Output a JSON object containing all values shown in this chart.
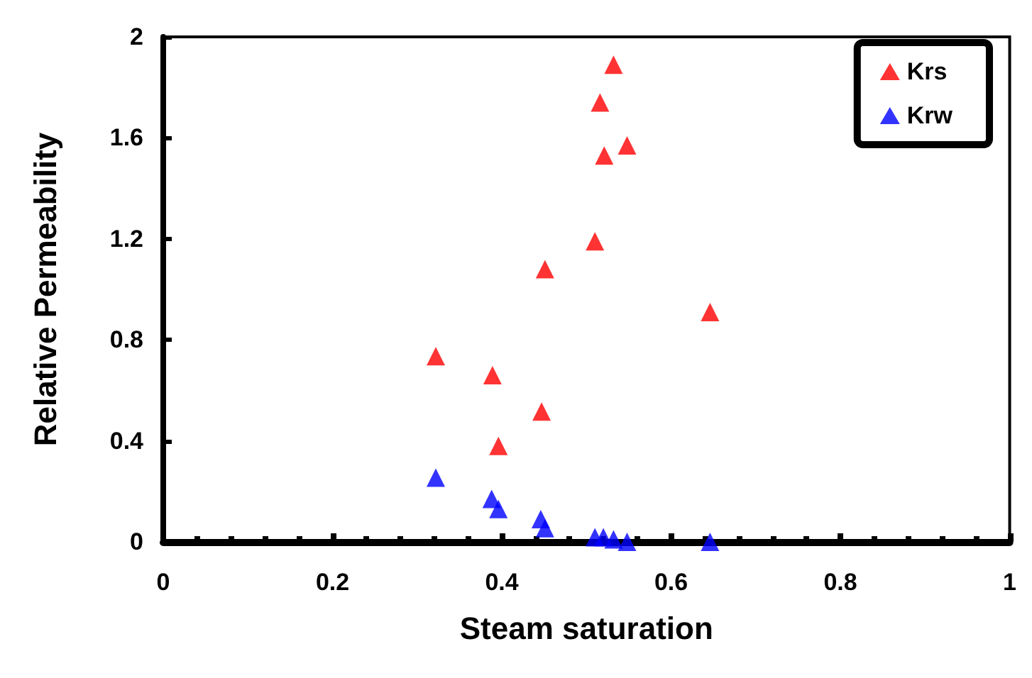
{
  "chart_data": {
    "type": "scatter",
    "xlabel": "Steam saturation",
    "ylabel": "Relative Permeability",
    "xlim": [
      0,
      1
    ],
    "xticks": [
      0,
      0.2,
      0.4,
      0.6,
      0.8,
      1
    ],
    "ylim": [
      0,
      2
    ],
    "yticks": [
      0,
      0.4,
      0.8,
      1.2,
      1.6,
      2
    ],
    "grid": false,
    "legend": "top right",
    "marker": "triangle",
    "series": [
      {
        "name": "Krs",
        "color": "#ff0000",
        "x": [
          0.532,
          0.516,
          0.548,
          0.521,
          0.51,
          0.451,
          0.646,
          0.322,
          0.389,
          0.447,
          0.396
        ],
        "values": [
          1.89,
          1.74,
          1.57,
          1.53,
          1.19,
          1.08,
          0.91,
          0.735,
          0.66,
          0.516,
          0.38
        ]
      },
      {
        "name": "Krw",
        "color": "#0000ff",
        "x": [
          0.322,
          0.388,
          0.396,
          0.446,
          0.451,
          0.51,
          0.52,
          0.532,
          0.548,
          0.646
        ],
        "values": [
          0.254,
          0.17,
          0.13,
          0.09,
          0.054,
          0.018,
          0.018,
          0.01,
          0,
          0
        ]
      }
    ]
  }
}
